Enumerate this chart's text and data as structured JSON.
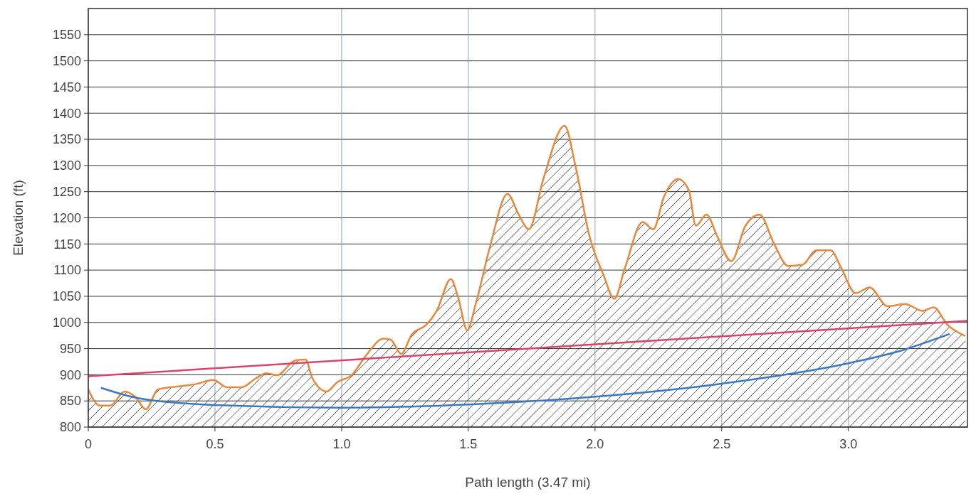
{
  "chart_data": {
    "type": "line",
    "xlabel": "Path length (3.47 mi)",
    "ylabel": "Elevation (ft)",
    "xlim": [
      0,
      3.47
    ],
    "xticks": [
      0,
      0.5,
      {
        "value": 1,
        "label": "1.0"
      },
      1.5,
      {
        "value": 2,
        "label": "2.0"
      },
      2.5,
      {
        "value": 3,
        "label": "3.0"
      }
    ],
    "ylim": [
      800,
      1600
    ],
    "yticks": [
      800,
      850,
      900,
      950,
      1000,
      1050,
      1100,
      1150,
      1200,
      1250,
      1300,
      1350,
      1400,
      1450,
      1500,
      1550
    ],
    "grid": true,
    "series": [
      {
        "type": "area",
        "color": "#e8883a",
        "x": [
          0,
          0.045,
          0.087,
          0.143,
          0.185,
          0.227,
          0.275,
          0.381,
          0.423,
          0.493,
          0.549,
          0.605,
          0.661,
          0.703,
          0.745,
          0.815,
          0.857,
          0.885,
          0.941,
          0.983,
          1.039,
          1.095,
          1.165,
          1.193,
          1.235,
          1.277,
          1.333,
          1.375,
          1.431,
          1.459,
          1.496,
          1.529,
          1.585,
          1.655,
          1.697,
          1.739,
          1.796,
          1.88,
          1.922,
          1.978,
          2.034,
          2.076,
          2.118,
          2.188,
          2.23,
          2.272,
          2.328,
          2.37,
          2.398,
          2.44,
          2.482,
          2.538,
          2.594,
          2.65,
          2.706,
          2.762,
          2.818,
          2.874,
          2.93,
          2.972,
          3.028,
          3.084,
          3.154,
          3.224,
          3.294,
          3.336,
          3.392,
          3.462
        ],
        "values": [
          872,
          841,
          841,
          868,
          858,
          834,
          872,
          879,
          882,
          890,
          876,
          876,
          893,
          903,
          899,
          927,
          929,
          893,
          868,
          886,
          899,
          936,
          969,
          967,
          940,
          977,
          995,
          1022,
          1083,
          1049,
          985,
          1035,
          1144,
          1246,
          1208,
          1178,
          1274,
          1376,
          1301,
          1165,
          1090,
          1045,
          1104,
          1192,
          1178,
          1240,
          1274,
          1253,
          1185,
          1206,
          1165,
          1117,
          1185,
          1206,
          1151,
          1108,
          1110,
          1138,
          1138,
          1104,
          1056,
          1067,
          1031,
          1035,
          1022,
          1029,
          995,
          974
        ]
      },
      {
        "color": "#d9436a",
        "x": [
          0,
          3.47
        ],
        "values": [
          897,
          1003
        ]
      },
      {
        "color": "#3a78c0",
        "x": [
          0.05,
          0.2,
          0.5,
          1.0,
          1.5,
          2.0,
          2.5,
          3.0,
          3.2,
          3.4
        ],
        "values": [
          875,
          855,
          842,
          837,
          843,
          858,
          883,
          922,
          945,
          978
        ]
      }
    ]
  }
}
